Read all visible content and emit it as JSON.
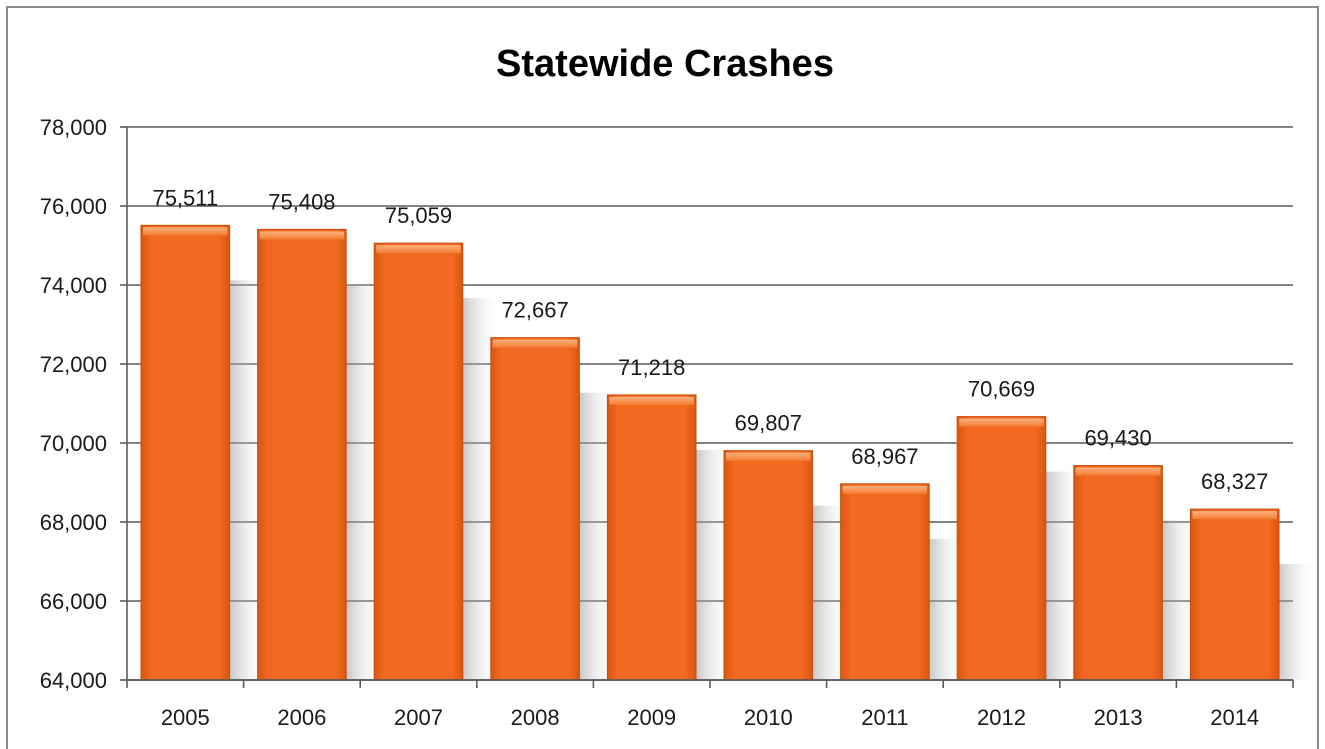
{
  "chart_data": {
    "type": "bar",
    "title": "Statewide Crashes",
    "xlabel": "",
    "ylabel": "",
    "categories": [
      "2005",
      "2006",
      "2007",
      "2008",
      "2009",
      "2010",
      "2011",
      "2012",
      "2013",
      "2014"
    ],
    "values": [
      75511,
      75408,
      75059,
      72667,
      71218,
      69807,
      68967,
      70669,
      69430,
      68327
    ],
    "value_labels": [
      "75,511",
      "75,408",
      "75,059",
      "72,667",
      "71,218",
      "69,807",
      "68,967",
      "70,669",
      "69,430",
      "68,327"
    ],
    "ylim": [
      64000,
      78000
    ],
    "yticks": [
      64000,
      66000,
      68000,
      70000,
      72000,
      74000,
      76000,
      78000
    ],
    "ytick_labels": [
      "64,000",
      "66,000",
      "68,000",
      "70,000",
      "72,000",
      "74,000",
      "76,000",
      "78,000"
    ],
    "grid": true,
    "legend": "none",
    "colors": {
      "bar": "#f26a21",
      "bar_light": "#f79a5e",
      "bar_dark": "#c8500f",
      "grid": "#5a5a5a",
      "shadow": "#b0b0b0"
    }
  }
}
